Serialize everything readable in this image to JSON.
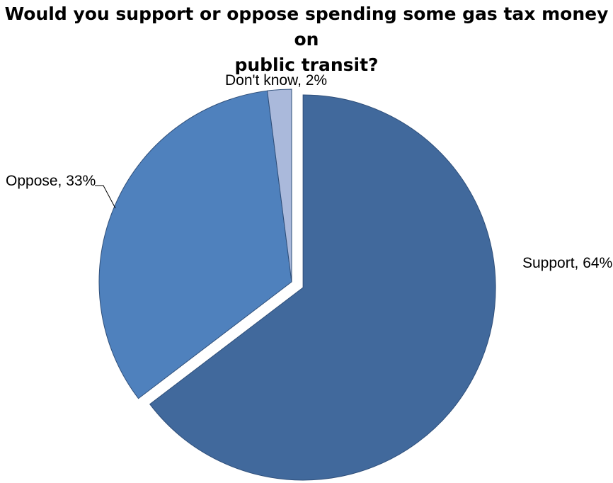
{
  "chart_data": {
    "type": "pie",
    "title_lines": [
      "Would you support or oppose spending some gas tax money on",
      "public transit?"
    ],
    "slices": [
      {
        "label": "Support",
        "value": 64,
        "color": "#41699c",
        "exploded": true
      },
      {
        "label": "Oppose",
        "value": 33,
        "color": "#4f81bd"
      },
      {
        "label": "Don't know",
        "value": 2,
        "color": "#aab9db"
      }
    ],
    "data_labels": [
      "Support, 64%",
      "Oppose, 33%",
      "Don't know, 2%"
    ],
    "value_unit": "%",
    "start_angle": "12 o'clock, clockwise",
    "legend": "none"
  }
}
